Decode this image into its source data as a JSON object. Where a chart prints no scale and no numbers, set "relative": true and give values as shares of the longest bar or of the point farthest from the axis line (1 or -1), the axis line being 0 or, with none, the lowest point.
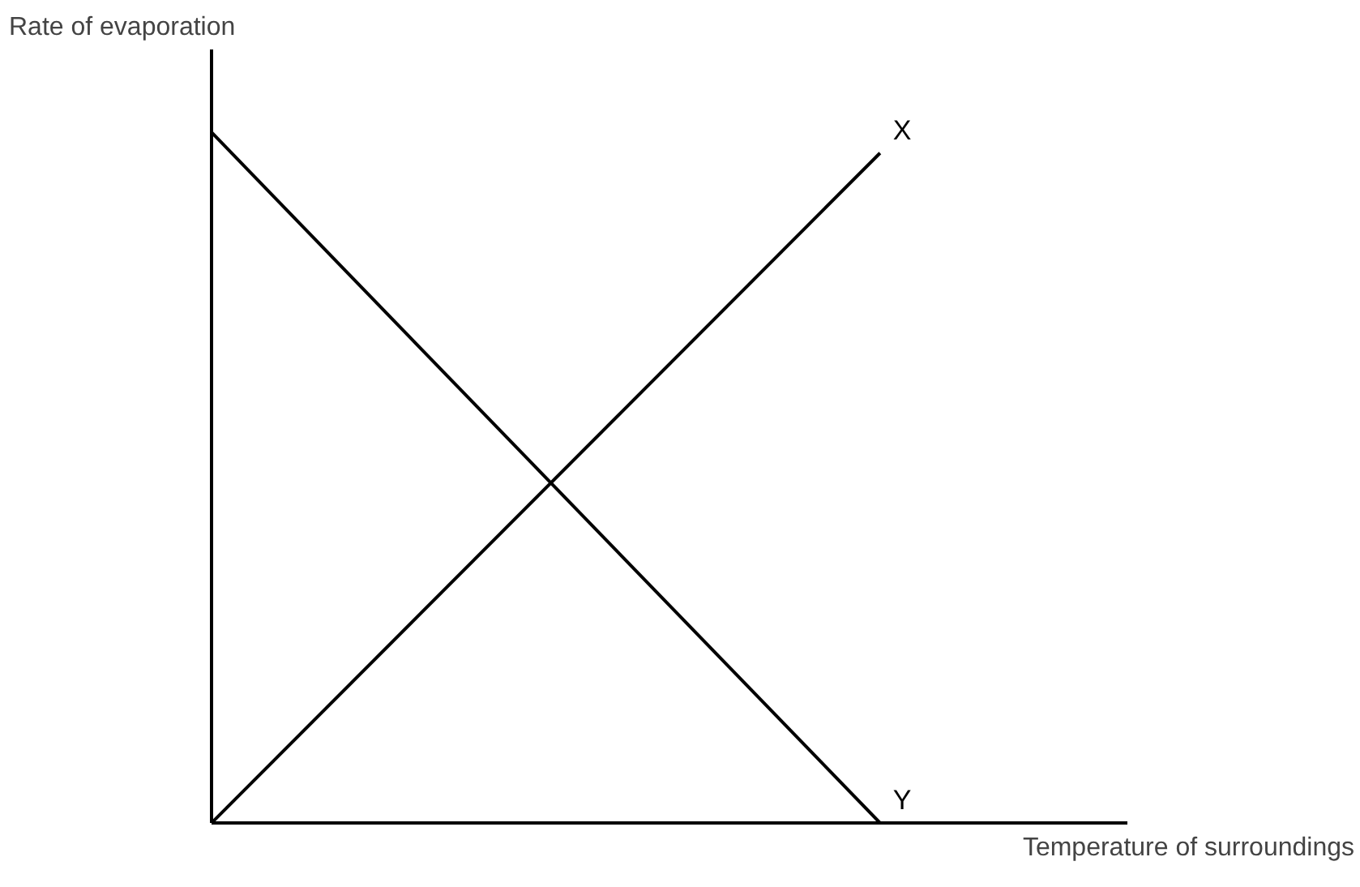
{
  "chart_data": {
    "type": "line",
    "relative": true,
    "xlabel": "Temperature of surroundings",
    "ylabel": "Rate of evaporation",
    "categories": [
      null,
      null
    ],
    "series": [
      {
        "name": "X",
        "color": "#000000",
        "values": [
          0,
          0.97
        ]
      },
      {
        "name": "Y",
        "color": "#000000",
        "values": [
          1,
          0
        ]
      }
    ],
    "marker": "none",
    "line_style": "solid"
  }
}
